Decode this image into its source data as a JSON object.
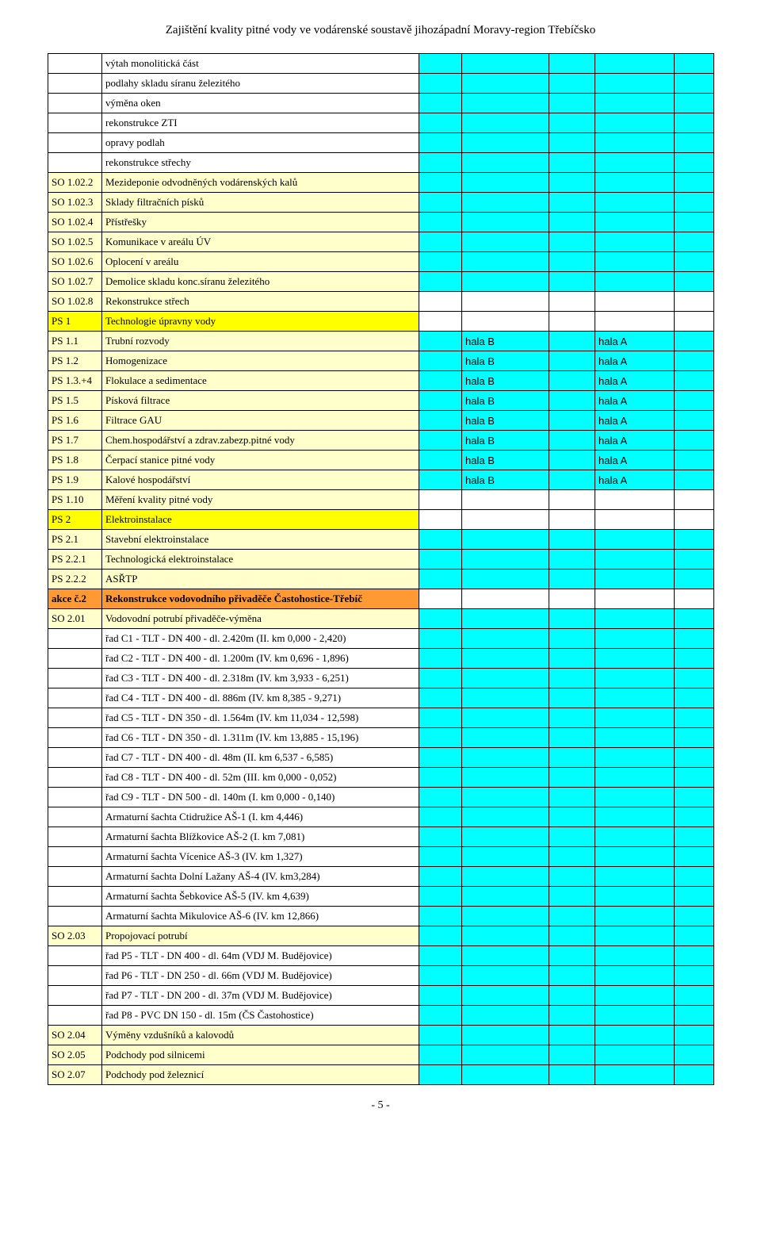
{
  "doc_title": "Zajištění kvality pitné vody ve vodárenské soustavě jihozápadní Moravy-region Třebíčsko",
  "page_number": "- 5 -",
  "colors": {
    "cyan": "#00ffff",
    "yellow": "#ffff00",
    "orange": "#ff9933",
    "lightyellow": "#ffffcc",
    "white": "#ffffff"
  },
  "rows": [
    {
      "code": "",
      "desc": "výtah monolitická část",
      "code_bg": "white",
      "desc_bg": "white",
      "right_bg": "cyan"
    },
    {
      "code": "",
      "desc": "podlahy skladu síranu železitého",
      "code_bg": "white",
      "desc_bg": "white",
      "right_bg": "cyan"
    },
    {
      "code": "",
      "desc": "výměna oken",
      "code_bg": "white",
      "desc_bg": "white",
      "right_bg": "cyan"
    },
    {
      "code": "",
      "desc": "rekonstrukce ZTI",
      "code_bg": "white",
      "desc_bg": "white",
      "right_bg": "cyan"
    },
    {
      "code": "",
      "desc": "opravy podlah",
      "code_bg": "white",
      "desc_bg": "white",
      "right_bg": "cyan"
    },
    {
      "code": "",
      "desc": "rekonstrukce střechy",
      "code_bg": "white",
      "desc_bg": "white",
      "right_bg": "cyan"
    },
    {
      "code": "SO 1.02.2",
      "desc": "Mezideponie odvodněných vodárenských kalů",
      "code_bg": "lightyellow",
      "desc_bg": "lightyellow",
      "right_bg": "cyan"
    },
    {
      "code": "SO 1.02.3",
      "desc": "Sklady filtračních písků",
      "code_bg": "lightyellow",
      "desc_bg": "lightyellow",
      "right_bg": "cyan"
    },
    {
      "code": "SO 1.02.4",
      "desc": "Přístřešky",
      "code_bg": "lightyellow",
      "desc_bg": "lightyellow",
      "right_bg": "cyan"
    },
    {
      "code": "SO 1.02.5",
      "desc": "Komunikace v areálu ÚV",
      "code_bg": "lightyellow",
      "desc_bg": "lightyellow",
      "right_bg": "cyan"
    },
    {
      "code": "SO 1.02.6",
      "desc": "Oplocení v areálu",
      "code_bg": "lightyellow",
      "desc_bg": "lightyellow",
      "right_bg": "cyan"
    },
    {
      "code": "SO 1.02.7",
      "desc": "Demolice skladu konc.síranu železitého",
      "code_bg": "lightyellow",
      "desc_bg": "lightyellow",
      "right_bg": "cyan"
    },
    {
      "code": "SO 1.02.8",
      "desc": "Rekonstrukce střech",
      "code_bg": "lightyellow",
      "desc_bg": "lightyellow",
      "right_bg": "white"
    },
    {
      "code": "PS 1",
      "desc": "Technologie úpravny vody",
      "code_bg": "yellow",
      "desc_bg": "yellow",
      "right_bg": "white"
    },
    {
      "code": "PS 1.1",
      "desc": "Trubní rozvody",
      "code_bg": "lightyellow",
      "desc_bg": "lightyellow",
      "right_bg": "cyan",
      "c2": "hala B",
      "c4": "hala A"
    },
    {
      "code": "PS 1.2",
      "desc": "Homogenizace",
      "code_bg": "lightyellow",
      "desc_bg": "lightyellow",
      "right_bg": "cyan",
      "c2": "hala B",
      "c4": "hala A"
    },
    {
      "code": "PS 1.3.+4",
      "desc": "Flokulace a sedimentace",
      "code_bg": "lightyellow",
      "desc_bg": "lightyellow",
      "right_bg": "cyan",
      "c2": "hala B",
      "c4": "hala A"
    },
    {
      "code": "PS 1.5",
      "desc": "Písková filtrace",
      "code_bg": "lightyellow",
      "desc_bg": "lightyellow",
      "right_bg": "cyan",
      "c2": "hala B",
      "c4": "hala A"
    },
    {
      "code": "PS 1.6",
      "desc": "Filtrace GAU",
      "code_bg": "lightyellow",
      "desc_bg": "lightyellow",
      "right_bg": "cyan",
      "c2": "hala B",
      "c4": "hala A"
    },
    {
      "code": "PS 1.7",
      "desc": "Chem.hospodářství a zdrav.zabezp.pitné vody",
      "code_bg": "lightyellow",
      "desc_bg": "lightyellow",
      "right_bg": "cyan",
      "c2": "hala B",
      "c4": "hala A"
    },
    {
      "code": "PS 1.8",
      "desc": "Čerpací stanice pitné vody",
      "code_bg": "lightyellow",
      "desc_bg": "lightyellow",
      "right_bg": "cyan",
      "c2": "hala B",
      "c4": "hala A"
    },
    {
      "code": "PS 1.9",
      "desc": "Kalové hospodářství",
      "code_bg": "lightyellow",
      "desc_bg": "lightyellow",
      "right_bg": "cyan",
      "c2": "hala B",
      "c4": "hala A"
    },
    {
      "code": "PS 1.10",
      "desc": "Měření kvality pitné vody",
      "code_bg": "lightyellow",
      "desc_bg": "lightyellow",
      "right_bg": "white"
    },
    {
      "code": "PS 2",
      "desc": "Elektroinstalace",
      "code_bg": "yellow",
      "desc_bg": "yellow",
      "right_bg": "white"
    },
    {
      "code": "PS 2.1",
      "desc": "Stavební elektroinstalace",
      "code_bg": "lightyellow",
      "desc_bg": "lightyellow",
      "right_bg": "cyan"
    },
    {
      "code": "PS 2.2.1",
      "desc": "Technologická elektroinstalace",
      "code_bg": "lightyellow",
      "desc_bg": "lightyellow",
      "right_bg": "cyan"
    },
    {
      "code": "PS 2.2.2",
      "desc": "ASŘTP",
      "code_bg": "lightyellow",
      "desc_bg": "lightyellow",
      "right_bg": "cyan"
    },
    {
      "code": "akce č.2",
      "desc": "Rekonstrukce vodovodního přivaděče Častohostice-Třebíč",
      "code_bg": "orange",
      "desc_bg": "orange",
      "right_bg": "white",
      "bold": true
    },
    {
      "code": "SO 2.01",
      "desc": "Vodovodní potrubí přivaděče-výměna",
      "code_bg": "lightyellow",
      "desc_bg": "lightyellow",
      "right_bg": "cyan"
    },
    {
      "code": "",
      "desc": "řad C1 - TLT - DN 400 - dl. 2.420m (II. km 0,000 - 2,420)",
      "code_bg": "white",
      "desc_bg": "white",
      "right_bg": "cyan"
    },
    {
      "code": "",
      "desc": "řad C2 - TLT - DN 400 - dl. 1.200m (IV. km 0,696 - 1,896)",
      "code_bg": "white",
      "desc_bg": "white",
      "right_bg": "cyan"
    },
    {
      "code": "",
      "desc": "řad C3 - TLT - DN 400 - dl. 2.318m (IV. km 3,933 - 6,251)",
      "code_bg": "white",
      "desc_bg": "white",
      "right_bg": "cyan"
    },
    {
      "code": "",
      "desc": "řad C4 - TLT - DN 400 - dl. 886m (IV. km 8,385 - 9,271)",
      "code_bg": "white",
      "desc_bg": "white",
      "right_bg": "cyan"
    },
    {
      "code": "",
      "desc": "řad C5 - TLT - DN 350 - dl. 1.564m (IV. km 11,034 - 12,598)",
      "code_bg": "white",
      "desc_bg": "white",
      "right_bg": "cyan"
    },
    {
      "code": "",
      "desc": "řad C6 - TLT - DN 350 - dl. 1.311m (IV. km 13,885 - 15,196)",
      "code_bg": "white",
      "desc_bg": "white",
      "right_bg": "cyan"
    },
    {
      "code": "",
      "desc": "řad C7 - TLT - DN 400 - dl. 48m (II. km  6,537 - 6,585)",
      "code_bg": "white",
      "desc_bg": "white",
      "right_bg": "cyan"
    },
    {
      "code": "",
      "desc": "řad C8 - TLT - DN 400 - dl. 52m (III. km 0,000 - 0,052)",
      "code_bg": "white",
      "desc_bg": "white",
      "right_bg": "cyan"
    },
    {
      "code": "",
      "desc": "řad C9 - TLT - DN 500 - dl. 140m (I. km 0,000 - 0,140)",
      "code_bg": "white",
      "desc_bg": "white",
      "right_bg": "cyan"
    },
    {
      "code": "",
      "desc": "Armaturní šachta Ctidružice   AŠ-1 (I. km 4,446)",
      "code_bg": "white",
      "desc_bg": "white",
      "right_bg": "cyan"
    },
    {
      "code": "",
      "desc": "Armaturní šachta Blížkovice   AŠ-2 (I. km 7,081)",
      "code_bg": "white",
      "desc_bg": "white",
      "right_bg": "cyan"
    },
    {
      "code": "",
      "desc": "Armaturní šachta Vícenice   AŠ-3 (IV. km 1,327)",
      "code_bg": "white",
      "desc_bg": "white",
      "right_bg": "cyan"
    },
    {
      "code": "",
      "desc": "Armaturní šachta Dolní Lažany   AŠ-4 (IV. km3,284)",
      "code_bg": "white",
      "desc_bg": "white",
      "right_bg": "cyan"
    },
    {
      "code": "",
      "desc": "Armaturní šachta Šebkovice  AŠ-5 (IV. km 4,639)",
      "code_bg": "white",
      "desc_bg": "white",
      "right_bg": "cyan"
    },
    {
      "code": "",
      "desc": "Armaturní šachta Mikulovice   AŠ-6 (IV. km 12,866)",
      "code_bg": "white",
      "desc_bg": "white",
      "right_bg": "cyan"
    },
    {
      "code": "SO 2.03",
      "desc": "Propojovací potrubí",
      "code_bg": "lightyellow",
      "desc_bg": "lightyellow",
      "right_bg": "cyan"
    },
    {
      "code": "",
      "desc": "řad P5 - TLT - DN 400 - dl. 64m (VDJ M. Budějovice)",
      "code_bg": "white",
      "desc_bg": "white",
      "right_bg": "cyan"
    },
    {
      "code": "",
      "desc": "řad P6 - TLT - DN 250 - dl. 66m (VDJ M. Budějovice)",
      "code_bg": "white",
      "desc_bg": "white",
      "right_bg": "cyan"
    },
    {
      "code": "",
      "desc": "řad P7 - TLT - DN 200 - dl. 37m (VDJ M. Budějovice)",
      "code_bg": "white",
      "desc_bg": "white",
      "right_bg": "cyan"
    },
    {
      "code": "",
      "desc": "řad P8 - PVC DN 150 - dl. 15m (ČS Častohostice)",
      "code_bg": "white",
      "desc_bg": "white",
      "right_bg": "cyan"
    },
    {
      "code": "SO 2.04",
      "desc": "Výměny vzdušníků a kalovodů",
      "code_bg": "lightyellow",
      "desc_bg": "lightyellow",
      "right_bg": "cyan"
    },
    {
      "code": "SO 2.05",
      "desc": "Podchody pod silnicemi",
      "code_bg": "lightyellow",
      "desc_bg": "lightyellow",
      "right_bg": "cyan"
    },
    {
      "code": "SO 2.07",
      "desc": "Podchody pod železnicí",
      "code_bg": "lightyellow",
      "desc_bg": "lightyellow",
      "right_bg": "cyan"
    }
  ]
}
